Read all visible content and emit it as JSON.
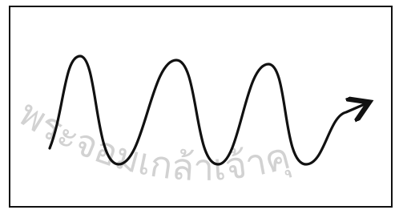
{
  "watermark": {
    "text": "พระจอมเกล้าเจ้าคุ"
  }
}
